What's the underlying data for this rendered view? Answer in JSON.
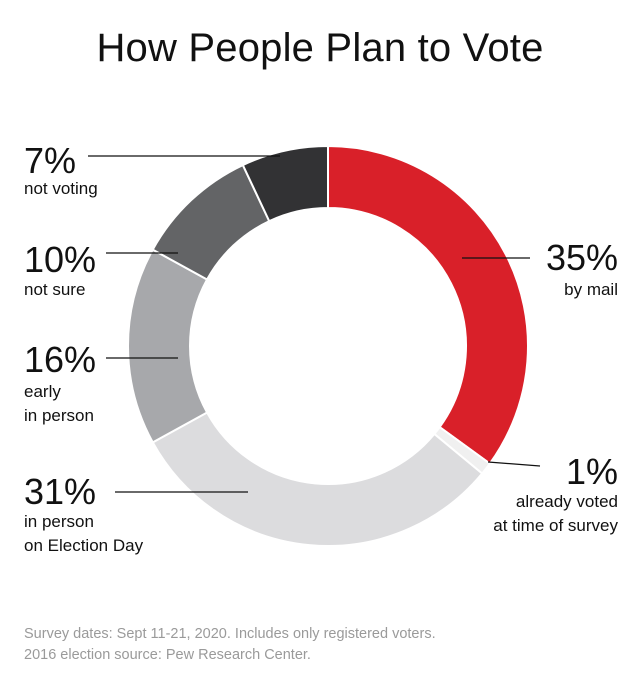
{
  "chart_data": {
    "type": "pie",
    "title": "How People Plan to Vote",
    "slices": [
      {
        "value_label": "35%",
        "value": 35,
        "label": "by mail",
        "color": "#d92029"
      },
      {
        "value_label": "1%",
        "value": 1,
        "label": "already voted\nat time of survey",
        "color": "#f0f0f0"
      },
      {
        "value_label": "31%",
        "value": 31,
        "label": "in person\non Election Day",
        "color": "#dcdcde"
      },
      {
        "value_label": "16%",
        "value": 16,
        "label": "early\nin person",
        "color": "#a7a8ab"
      },
      {
        "value_label": "10%",
        "value": 10,
        "label": "not sure",
        "color": "#636466"
      },
      {
        "value_label": "7%",
        "value": 7,
        "label": "not voting",
        "color": "#323234"
      }
    ]
  },
  "footnotes": [
    "Survey dates: Sept 11-21, 2020. Includes only registered voters.",
    "2016 election source: Pew Research Center."
  ]
}
